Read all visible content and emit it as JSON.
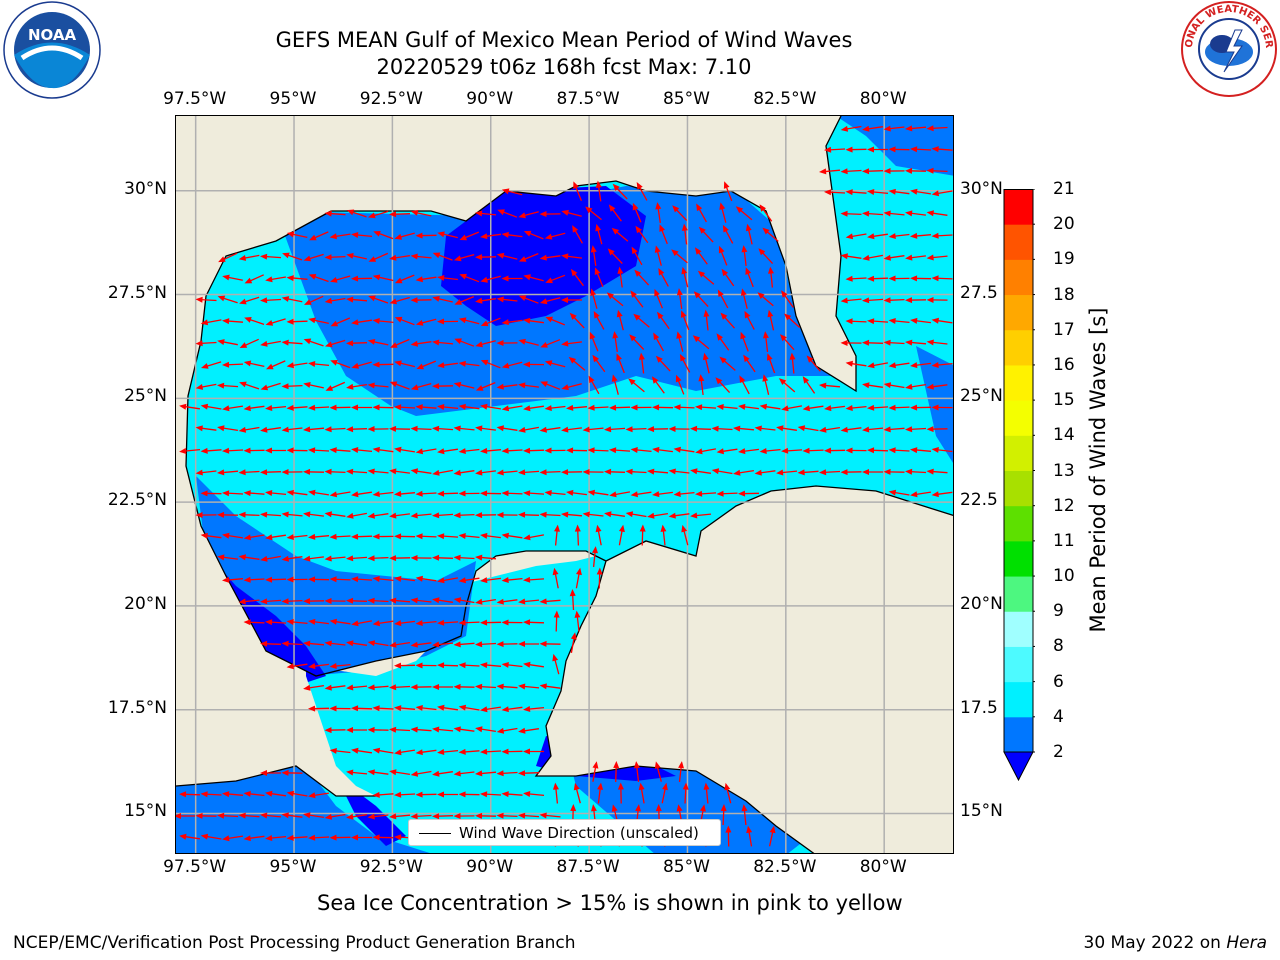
{
  "header": {
    "title_line1": "GEFS MEAN Gulf of Mexico Mean Period of Wind Waves",
    "title_line2": "20220529 t06z 168h fcst   Max: 7.10"
  },
  "logos": {
    "left": {
      "name": "NOAA",
      "text": "NOAA"
    },
    "right": {
      "name": "National Weather Service",
      "text": "NATIONAL WEATHER SERVICE"
    }
  },
  "map": {
    "lon_ticks": [
      "97.5°W",
      "95°W",
      "92.5°W",
      "90°W",
      "87.5°W",
      "85°W",
      "82.5°W",
      "80°W"
    ],
    "lat_ticks_left": [
      "30°N",
      "27.5°N",
      "25°N",
      "22.5°N",
      "20°N",
      "17.5°N",
      "15°N"
    ],
    "lat_ticks_right": [
      "30°N",
      "27.5",
      "25°N",
      "22.5",
      "20°N",
      "17.5",
      "15°N"
    ],
    "extent": {
      "lon_min": -98,
      "lon_max": -78.2,
      "lat_min": 14,
      "lat_max": 31.8
    },
    "legend": "Wind Wave Direction (unscaled)",
    "colors": {
      "land": "#efecdc",
      "grid": "#b0b0b0",
      "arrow": "#ff0000",
      "coast": "#000000"
    }
  },
  "colorbar": {
    "label": "Mean Period of Wind Waves [s]",
    "ticks": [
      "2",
      "4",
      "6",
      "8",
      "9",
      "10",
      "11",
      "12",
      "13",
      "14",
      "15",
      "16",
      "17",
      "18",
      "19",
      "20",
      "21"
    ],
    "colors": [
      "#0077ff",
      "#00f0ff",
      "#4dfaff",
      "#a0ffff",
      "#4df780",
      "#00e000",
      "#5de000",
      "#a8e000",
      "#d2f000",
      "#f4ff00",
      "#fff200",
      "#ffcf00",
      "#ffa800",
      "#ff8000",
      "#ff5400",
      "#ff2a00",
      "#ff0000"
    ],
    "under_color": "#0000ff"
  },
  "caption": "Sea Ice Concentration > 15% is shown in pink to yellow",
  "footer": {
    "left": "NCEP/EMC/Verification Post Processing Product Generation Branch",
    "right_prefix": "30 May 2022 on ",
    "right_italic": "Hera"
  }
}
